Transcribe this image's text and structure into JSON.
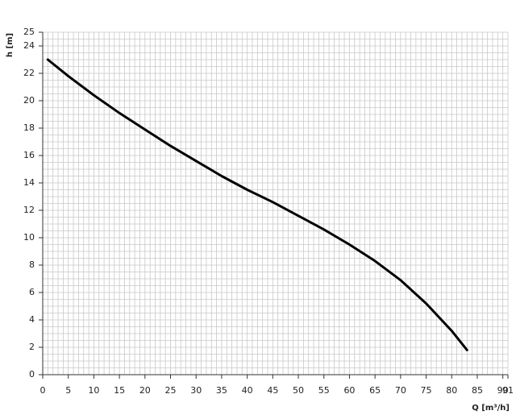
{
  "chart_data": {
    "type": "line",
    "x_label": "Q [m³/h]",
    "y_label": "h [m]",
    "x": [
      1,
      5,
      10,
      15,
      20,
      25,
      30,
      35,
      40,
      45,
      50,
      55,
      60,
      65,
      70,
      75,
      80,
      83
    ],
    "series": [
      {
        "color": "#000000",
        "values": [
          23,
          21.8,
          20.4,
          19.1,
          17.9,
          16.7,
          15.6,
          14.5,
          13.5,
          12.6,
          11.6,
          10.6,
          9.5,
          8.3,
          6.9,
          5.2,
          3.2,
          1.8
        ]
      }
    ],
    "xlim": [
      0,
      91
    ],
    "xticks": [
      0,
      5,
      10,
      15,
      20,
      25,
      30,
      35,
      40,
      45,
      50,
      55,
      60,
      65,
      70,
      75,
      80,
      85,
      90,
      91
    ],
    "ylim": [
      0,
      25
    ],
    "yticks": [
      0,
      2,
      4,
      6,
      8,
      10,
      12,
      14,
      16,
      18,
      20,
      22,
      24,
      25
    ],
    "grid": true,
    "x_minor_step": 1,
    "y_minor_step": 0.5
  }
}
